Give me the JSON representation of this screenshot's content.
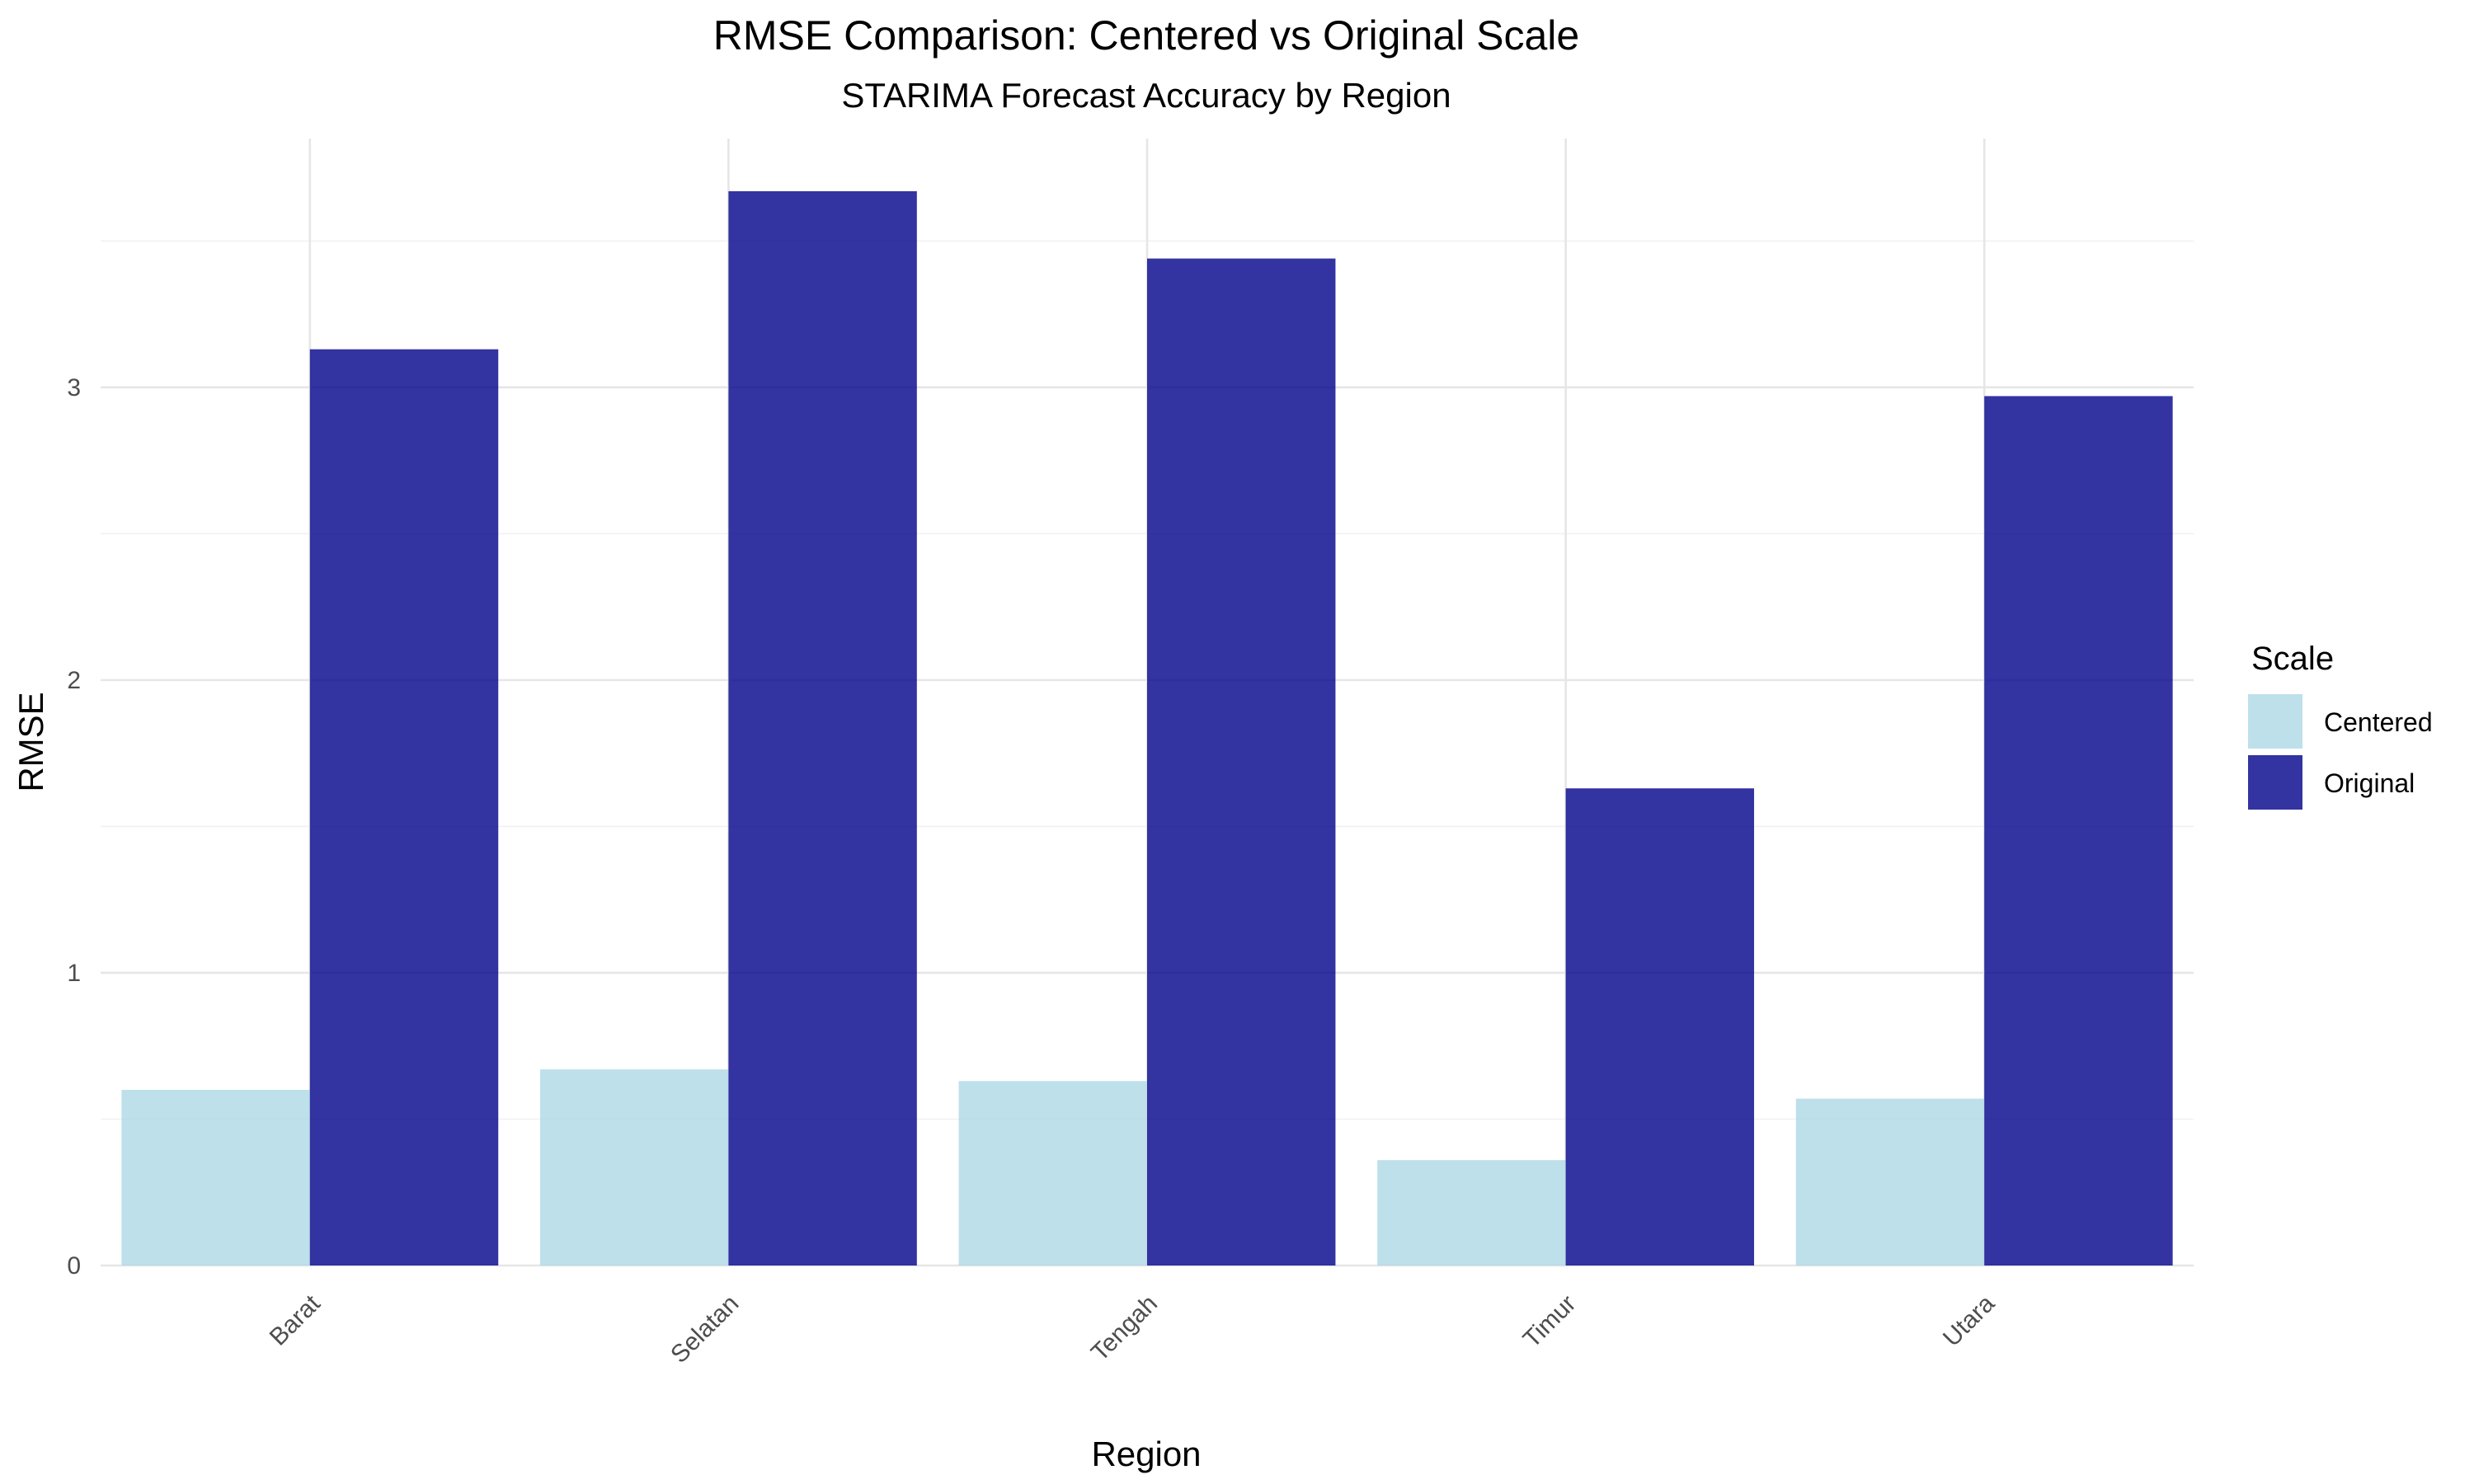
{
  "chart_data": {
    "type": "bar",
    "title": "RMSE Comparison: Centered vs Original Scale",
    "subtitle": "STARIMA Forecast Accuracy by Region",
    "xlabel": "Region",
    "ylabel": "RMSE",
    "categories": [
      "Barat",
      "Selatan",
      "Tengah",
      "Timur",
      "Utara"
    ],
    "series": [
      {
        "name": "Centered",
        "color": "#add8e6",
        "values": [
          0.6,
          0.67,
          0.63,
          0.36,
          0.57
        ]
      },
      {
        "name": "Original",
        "color": "#00008b",
        "values": [
          3.13,
          3.67,
          3.44,
          1.63,
          2.97
        ]
      }
    ],
    "ylim": [
      0,
      3.85
    ],
    "yticks": [
      0,
      1,
      2,
      3
    ],
    "legend": {
      "title": "Scale",
      "position": "right"
    },
    "grid": true
  }
}
